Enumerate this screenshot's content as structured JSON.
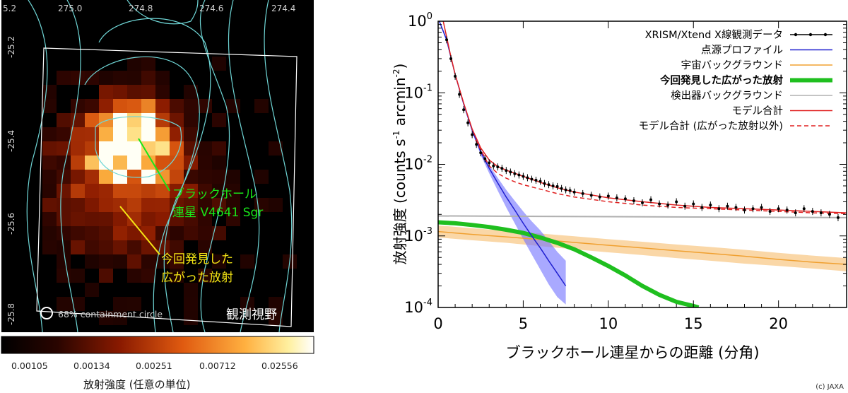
{
  "left_panel": {
    "ra_ticks": [
      "5.2",
      "275.0",
      "274.8",
      "274.6",
      "274.4"
    ],
    "dec_ticks": [
      "-25.2",
      "-25.4",
      "-25.6",
      "-25.8"
    ],
    "annotation_bh": [
      "ブラックホール",
      "連星 V4641 Sgr"
    ],
    "annotation_new": [
      "今回発見した",
      "広がった放射"
    ],
    "containment_label": "68% containment circle",
    "fov_label": "観測視野",
    "colorbar_ticks": [
      "0.00105",
      "0.00134",
      "0.00251",
      "0.00712",
      "0.02556"
    ],
    "colorbar_label": "放射強度 (任意の単位)",
    "colors": {
      "bh_label": "#19e619",
      "new_label": "#f5e614",
      "contour": "#6fd6d6"
    }
  },
  "chart_data": {
    "type": "line",
    "xlabel": "ブラックホール連星からの距離 (分角)",
    "ylabel_main": "放射強度",
    "ylabel_units": "(counts s",
    "ylabel_exp1": "-1",
    "ylabel_mid": " arcmin",
    "ylabel_exp2": "-2",
    "ylabel_close": ")",
    "xlim": [
      0,
      24
    ],
    "ylim": [
      0.0001,
      1
    ],
    "yscale": "log",
    "x_ticks": [
      "0",
      "5",
      "10",
      "15",
      "20"
    ],
    "y_ticks": [
      {
        "base": "10",
        "exp": "0"
      },
      {
        "base": "10",
        "exp": "-1"
      },
      {
        "base": "10",
        "exp": "-2"
      },
      {
        "base": "10",
        "exp": "-3"
      },
      {
        "base": "10",
        "exp": "-4"
      }
    ],
    "legend": [
      {
        "label": "XRISM/Xtend X線観測データ",
        "color": "#000000",
        "style": "data"
      },
      {
        "label": "点源プロファイル",
        "color": "#2020d0",
        "style": "solid"
      },
      {
        "label": "宇宙バックグラウンド",
        "color": "#f0a030",
        "style": "solid"
      },
      {
        "label": "今回発見した広がった放射",
        "color": "#1fbf1f",
        "style": "thick"
      },
      {
        "label": "検出器バックグラウンド",
        "color": "#b0b0b0",
        "style": "solid"
      },
      {
        "label": "モデル合計",
        "color": "#e02020",
        "style": "solid"
      },
      {
        "label": "モデル合計 (広がった放射以外)",
        "color": "#e02020",
        "style": "dashed"
      }
    ],
    "series": {
      "data_points": {
        "x": [
          0.5,
          0.75,
          1.0,
          1.25,
          1.5,
          1.75,
          2.0,
          2.25,
          2.5,
          2.75,
          3.0,
          3.25,
          3.5,
          3.75,
          4.0,
          4.25,
          4.5,
          4.75,
          5.0,
          5.25,
          5.5,
          5.75,
          6.0,
          6.25,
          6.5,
          6.75,
          7.0,
          7.25,
          7.5,
          7.75,
          8.0,
          8.5,
          9.0,
          9.5,
          10.0,
          10.5,
          11.0,
          11.5,
          12.0,
          12.5,
          13.0,
          13.5,
          14.0,
          14.5,
          15.0,
          15.5,
          16.0,
          16.5,
          17.0,
          17.5,
          18.0,
          18.5,
          19.0,
          19.5,
          20.0,
          20.5,
          21.0,
          21.5,
          22.0,
          22.5,
          23.0,
          23.5
        ],
        "y": [
          0.55,
          0.3,
          0.17,
          0.095,
          0.058,
          0.038,
          0.026,
          0.019,
          0.0145,
          0.012,
          0.0105,
          0.0095,
          0.0092,
          0.0088,
          0.0082,
          0.0078,
          0.0074,
          0.0071,
          0.0068,
          0.0065,
          0.0062,
          0.006,
          0.0058,
          0.0054,
          0.0052,
          0.005,
          0.0049,
          0.0046,
          0.0044,
          0.0043,
          0.0041,
          0.0039,
          0.0037,
          0.0035,
          0.0036,
          0.0034,
          0.0033,
          0.0031,
          0.0029,
          0.0032,
          0.0028,
          0.0027,
          0.003,
          0.0026,
          0.0028,
          0.0025,
          0.0027,
          0.0024,
          0.0026,
          0.0025,
          0.0023,
          0.0024,
          0.0025,
          0.0022,
          0.0024,
          0.0023,
          0.0021,
          0.0024,
          0.0022,
          0.0021,
          0.002,
          0.0018
        ]
      },
      "point_source": {
        "x": [
          0,
          0.5,
          1.0,
          1.5,
          2.0,
          2.5,
          3.0,
          3.5,
          4.0,
          4.5,
          5.0,
          5.5,
          6.0,
          6.5,
          7.0,
          7.5
        ],
        "y": [
          1.1,
          0.55,
          0.18,
          0.07,
          0.03,
          0.015,
          0.0088,
          0.0055,
          0.0035,
          0.0023,
          0.0015,
          0.001,
          0.00068,
          0.00045,
          0.0003,
          0.0002
        ],
        "band_lo": [
          1.05,
          0.52,
          0.17,
          0.066,
          0.028,
          0.0135,
          0.0075,
          0.0043,
          0.0025,
          0.0015,
          0.0009,
          0.00055,
          0.00034,
          0.00021,
          0.00014,
          0.00011
        ],
        "band_hi": [
          1.15,
          0.58,
          0.19,
          0.074,
          0.032,
          0.0162,
          0.0098,
          0.0065,
          0.0044,
          0.0031,
          0.0022,
          0.0016,
          0.0012,
          0.00085,
          0.0006,
          0.00045
        ]
      },
      "cosmic_bg": {
        "x": [
          0,
          2,
          4,
          6,
          8,
          10,
          12,
          14,
          16,
          18,
          20,
          22,
          24
        ],
        "y": [
          0.00115,
          0.00105,
          0.00097,
          0.00089,
          0.00081,
          0.00074,
          0.00068,
          0.00062,
          0.00057,
          0.00052,
          0.00047,
          0.00043,
          0.0004
        ],
        "band_lo": [
          0.00095,
          0.00087,
          0.0008,
          0.00072,
          0.00065,
          0.00059,
          0.00054,
          0.00049,
          0.00045,
          0.00041,
          0.00038,
          0.00035,
          0.00032
        ],
        "band_hi": [
          0.0014,
          0.00128,
          0.00118,
          0.00108,
          0.00099,
          0.0009,
          0.00083,
          0.00076,
          0.0007,
          0.00064,
          0.00058,
          0.00053,
          0.00049
        ]
      },
      "diffuse": {
        "x": [
          0,
          1,
          2,
          3,
          4,
          5,
          6,
          7,
          8,
          9,
          10,
          11,
          12,
          13,
          14,
          15,
          15.3
        ],
        "y": [
          0.00155,
          0.0015,
          0.00142,
          0.00133,
          0.00122,
          0.0011,
          0.00095,
          0.0008,
          0.00065,
          0.0005,
          0.00038,
          0.00028,
          0.0002,
          0.00015,
          0.00012,
          0.000105,
          0.0001
        ]
      },
      "detector_bg": {
        "x": [
          0,
          24
        ],
        "y": [
          0.0019,
          0.0018
        ]
      },
      "model_total": {
        "x": [
          0.3,
          0.7,
          1.0,
          1.5,
          2.0,
          2.5,
          3.0,
          3.5,
          4.0,
          5.0,
          6.0,
          7.0,
          8.0,
          10.0,
          12.0,
          14.0,
          16.0,
          18.0,
          20.0,
          22.0,
          24.0
        ],
        "y": [
          1.0,
          0.36,
          0.18,
          0.072,
          0.031,
          0.017,
          0.0115,
          0.0093,
          0.0083,
          0.0068,
          0.0056,
          0.0047,
          0.0041,
          0.0034,
          0.003,
          0.0027,
          0.0025,
          0.0024,
          0.0023,
          0.0022,
          0.0021
        ]
      },
      "model_excl_diffuse": {
        "x": [
          2.2,
          3.0,
          3.5,
          4.0,
          4.5,
          5.0,
          6.0,
          7.0,
          8.0,
          10.0,
          12.0,
          14.0,
          16.0,
          18.0,
          20.0,
          22.0,
          24.0
        ],
        "y": [
          0.022,
          0.0095,
          0.0075,
          0.0064,
          0.0057,
          0.0052,
          0.0045,
          0.0039,
          0.0035,
          0.003,
          0.0027,
          0.0025,
          0.0024,
          0.0023,
          0.0022,
          0.0021,
          0.00205
        ]
      }
    }
  },
  "credit": "(c) JAXA"
}
